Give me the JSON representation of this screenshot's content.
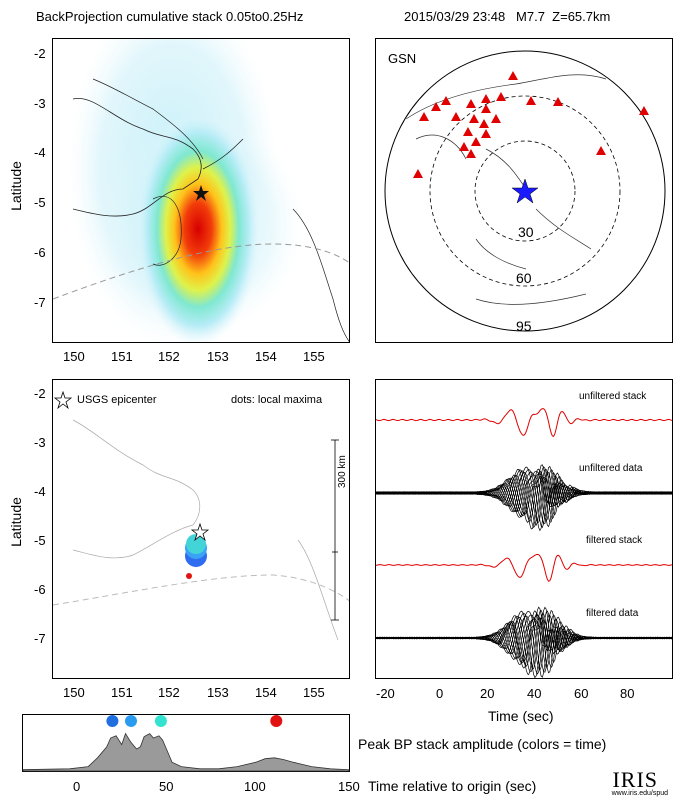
{
  "header": {
    "title": "BackProjection cumulative stack 0.05to0.25Hz",
    "event": "2015/03/29 23:48   M7.7  Z=65.7km"
  },
  "map_top": {
    "ylabel": "Latitude",
    "lat_ticks": [
      "-2",
      "-3",
      "-4",
      "-5",
      "-6",
      "-7"
    ],
    "lon_ticks": [
      "150",
      "151",
      "152",
      "153",
      "154",
      "155"
    ]
  },
  "globe": {
    "label": "GSN",
    "ring_labels": [
      "30",
      "60",
      "95"
    ],
    "colors": {
      "station": "#e00000",
      "epicenter": "#1a1aff"
    }
  },
  "map_bottom": {
    "ylabel": "Latitude",
    "legend_epicenter": "USGS epicenter",
    "legend_dots": "dots: local maxima",
    "scale_label": "300 km",
    "lat_ticks": [
      "-2",
      "-3",
      "-4",
      "-5",
      "-6",
      "-7"
    ],
    "lon_ticks": [
      "150",
      "151",
      "152",
      "153",
      "154",
      "155"
    ]
  },
  "traces": {
    "labels": [
      "unfiltered stack",
      "unfiltered data",
      "filtered stack",
      "filtered data"
    ],
    "xlabel": "Time (sec)",
    "x_ticks": [
      "-20",
      "0",
      "20",
      "40",
      "60",
      "80"
    ],
    "colors": {
      "stack": "#e00000",
      "data": "#000000"
    }
  },
  "peak": {
    "caption": "Peak BP stack amplitude (colors = time)",
    "xlabel": "Time relative to origin (sec)",
    "x_ticks": [
      "0",
      "50",
      "100",
      "150"
    ]
  },
  "logo": {
    "name": "IRIS",
    "url": "www.iris.edu/spud"
  },
  "chart_data": {
    "type": "area",
    "xlim": [
      -25,
      150
    ],
    "x": [
      -25,
      0,
      10,
      15,
      20,
      22,
      25,
      28,
      30,
      33,
      36,
      38,
      40,
      43,
      45,
      48,
      50,
      53,
      55,
      60,
      70,
      80,
      90,
      100,
      105,
      110,
      115,
      120,
      130,
      140,
      150
    ],
    "values": [
      0.03,
      0.05,
      0.1,
      0.3,
      0.55,
      0.75,
      0.8,
      0.6,
      0.85,
      0.65,
      0.5,
      0.55,
      0.78,
      0.85,
      0.75,
      0.8,
      0.7,
      0.4,
      0.2,
      0.1,
      0.05,
      0.05,
      0.1,
      0.2,
      0.28,
      0.3,
      0.26,
      0.2,
      0.1,
      0.05,
      0.03
    ],
    "peaks": [
      {
        "x": 23,
        "color": "#1f6fe0"
      },
      {
        "x": 33,
        "color": "#2a9cf0"
      },
      {
        "x": 49,
        "color": "#33e3d0"
      },
      {
        "x": 111,
        "color": "#e21212"
      }
    ]
  }
}
